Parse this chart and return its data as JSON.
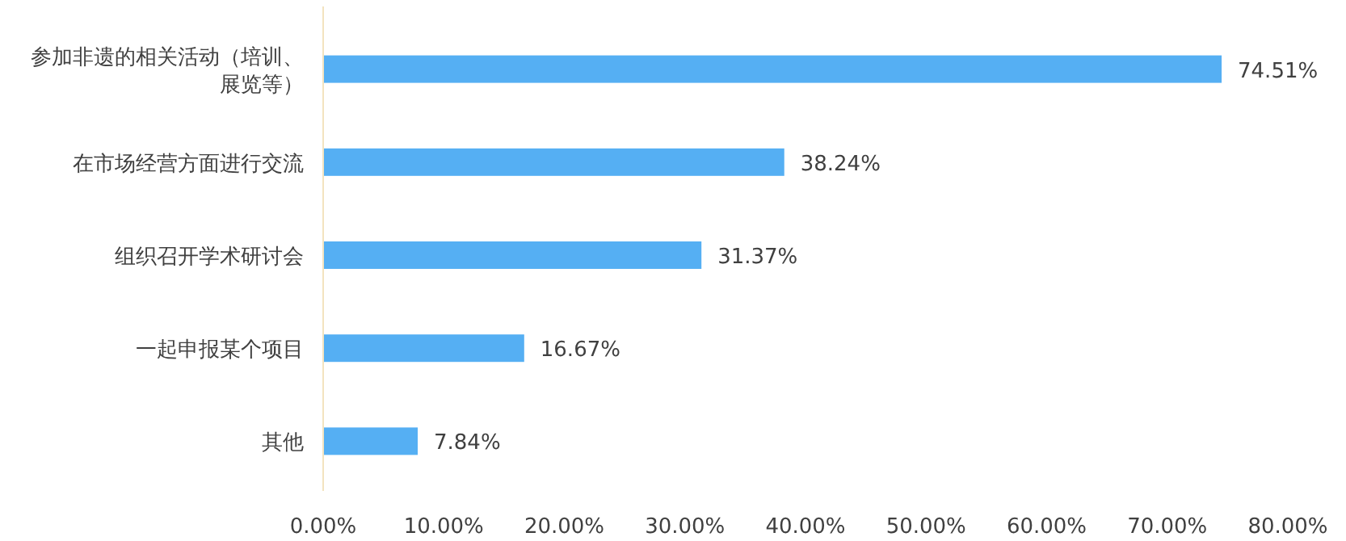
{
  "chart_data": {
    "type": "bar",
    "orientation": "horizontal",
    "categories": [
      "参加非遗的相关活动（培训、展览等）",
      "在市场经营方面进行交流",
      "组织召开学术研讨会",
      "一起申报某个项目",
      "其他"
    ],
    "values": [
      74.51,
      38.24,
      31.37,
      16.67,
      7.84
    ],
    "value_labels": [
      "74.51%",
      "38.24%",
      "31.37%",
      "16.67%",
      "7.84%"
    ],
    "color": "#55aff3",
    "xlim": [
      0,
      80
    ],
    "xticks": [
      {
        "value": 0,
        "label": "0.00%"
      },
      {
        "value": 10,
        "label": "10.00%"
      },
      {
        "value": 20,
        "label": "20.00%"
      },
      {
        "value": 30,
        "label": "30.00%"
      },
      {
        "value": 40,
        "label": "40.00%"
      },
      {
        "value": 50,
        "label": "50.00%"
      },
      {
        "value": 60,
        "label": "60.00%"
      },
      {
        "value": 70,
        "label": "70.00%"
      },
      {
        "value": 80,
        "label": "80.00%"
      }
    ],
    "grid": false
  }
}
